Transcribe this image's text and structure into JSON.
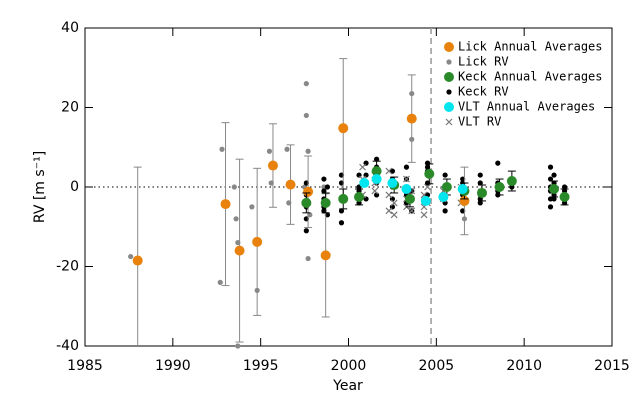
{
  "chart_data": {
    "type": "scatter",
    "xlabel": "Year",
    "ylabel": "RV [m s⁻¹]",
    "xlim": [
      1985,
      2015
    ],
    "ylim": [
      -40,
      40
    ],
    "xticks": [
      1985,
      1990,
      1995,
      2000,
      2005,
      2010,
      2015
    ],
    "yticks": [
      -40,
      -20,
      0,
      20,
      40
    ],
    "hline": 0,
    "vline": 2004.7,
    "legend": "upper right",
    "series": [
      {
        "name": "Lick Annual Averages",
        "color": "#e8820c",
        "marker": "circle-large",
        "x": [
          1988.0,
          1993.0,
          1993.8,
          1994.8,
          1995.7,
          1996.7,
          1997.7,
          1998.7,
          1999.7,
          2003.6,
          2006.6
        ],
        "values": [
          -18.5,
          -4.3,
          -16.0,
          -13.8,
          5.4,
          0.6,
          -1.2,
          -17.2,
          14.8,
          17.2,
          -3.5
        ],
        "errors": [
          23.5,
          20.5,
          23.0,
          18.5,
          10.5,
          10.0,
          9.0,
          15.5,
          17.5,
          11.0,
          8.5
        ]
      },
      {
        "name": "Lick RV",
        "color": "#888888",
        "marker": "circle-small",
        "x": [
          1987.6,
          1992.7,
          1992.8,
          1993.5,
          1993.6,
          1993.7,
          1993.7,
          1994.5,
          1994.8,
          1995.5,
          1995.6,
          1996.5,
          1996.6,
          1997.6,
          1997.6,
          1997.7,
          1997.7,
          1997.5,
          1997.8,
          1998.6,
          1999.6,
          2003.6,
          2003.6,
          2006.5,
          2006.6
        ],
        "values": [
          -17.5,
          -24,
          9.5,
          0,
          -8,
          -14,
          -40,
          -5,
          -26,
          9,
          1,
          9.5,
          -4,
          26,
          18,
          9,
          -18,
          0,
          -7,
          0,
          3,
          23.5,
          12,
          0,
          -8
        ]
      },
      {
        "name": "Keck Annual Averages",
        "color": "#2a8a2a",
        "marker": "circle-large",
        "x": [
          1997.6,
          1998.7,
          1999.7,
          2000.6,
          2001.6,
          2002.6,
          2003.5,
          2004.6,
          2005.6,
          2006.6,
          2007.6,
          2008.6,
          2009.3,
          2011.7,
          2012.3
        ],
        "values": [
          -4,
          -4,
          -3,
          -2.5,
          4,
          0.5,
          -3,
          3.3,
          0,
          -1,
          -1.5,
          0,
          1.5,
          -0.5,
          -2.5
        ],
        "errors": [
          2.5,
          2.5,
          2.5,
          2,
          2.5,
          2,
          2,
          2.5,
          2,
          2,
          2,
          2,
          2.5,
          2,
          2
        ]
      },
      {
        "name": "Keck RV",
        "color": "#000000",
        "marker": "circle-small",
        "x": [
          1997.6,
          1997.6,
          1997.6,
          1997.6,
          1997.6,
          1998.6,
          1998.6,
          1998.6,
          1998.6,
          1998.6,
          1998.8,
          1998.8,
          1999.6,
          1999.6,
          1999.6,
          1999.6,
          1999.6,
          2000.6,
          2000.6,
          2000.6,
          2000.6,
          2001.0,
          2001.0,
          2001.0,
          2001.6,
          2001.6,
          2001.6,
          2001.6,
          2001.6,
          2002.5,
          2002.5,
          2002.5,
          2002.5,
          2002.5,
          2003.3,
          2003.3,
          2003.3,
          2003.3,
          2003.6,
          2003.6,
          2003.6,
          2004.5,
          2004.5,
          2004.5,
          2004.5,
          2004.5,
          2005.5,
          2005.5,
          2005.5,
          2005.5,
          2006.5,
          2006.5,
          2006.5,
          2006.5,
          2007.5,
          2007.5,
          2007.5,
          2007.5,
          2007.5,
          2007.5,
          2008.5,
          2008.5,
          2008.5,
          2008.5,
          2009.3,
          2009.3,
          2011.5,
          2011.5,
          2011.5,
          2011.5,
          2011.5,
          2011.5,
          2011.7,
          2011.7,
          2011.7,
          2011.7,
          2012.3,
          2012.3,
          2012.3
        ],
        "values": [
          -8,
          -11,
          -5,
          -2,
          1,
          -3,
          -6,
          -5,
          -1,
          2,
          -7,
          0,
          -3,
          -6,
          -9,
          1,
          3,
          -4,
          0,
          3,
          -1,
          3,
          6,
          -3,
          5,
          1,
          7,
          2,
          -2,
          0,
          -3,
          4,
          -5,
          2,
          -2,
          2,
          5,
          -4,
          -3,
          -1,
          -6,
          6,
          1,
          4,
          -2,
          5,
          0,
          3,
          -4,
          -6,
          2,
          -2,
          -6,
          1,
          -1,
          -4,
          -3,
          1,
          3,
          -2,
          1,
          -2,
          6,
          -1,
          2,
          0,
          -3,
          0,
          2,
          -5,
          5,
          -1,
          3,
          -2,
          1,
          -3,
          -1,
          -4,
          0
        ]
      },
      {
        "name": "VLT Annual Averages",
        "color": "#00e5ee",
        "marker": "circle-large",
        "x": [
          2000.9,
          2001.6,
          2002.5,
          2003.3,
          2004.4,
          2005.4,
          2006.5
        ],
        "values": [
          1,
          2,
          1,
          -0.5,
          -3.5,
          -2.5,
          -0.5
        ]
      },
      {
        "name": "VLT RV",
        "color": "#777777",
        "marker": "x",
        "x": [
          2000.8,
          2000.8,
          2000.8,
          2001.5,
          2001.5,
          2001.5,
          2002.3,
          2002.3,
          2002.3,
          2002.6,
          2002.6,
          2003.3,
          2003.3,
          2003.3,
          2003.6,
          2003.6,
          2004.3,
          2004.3,
          2004.3,
          2004.5,
          2004.5,
          2005.4,
          2005.4,
          2006.4,
          2006.4
        ],
        "values": [
          -2,
          5,
          2,
          1,
          3,
          -1,
          -2,
          4,
          -6,
          -4,
          -7,
          2,
          -3,
          -5,
          -6,
          -1,
          -5,
          -2,
          -7,
          -4,
          0,
          -1,
          -3,
          -4,
          0
        ]
      }
    ]
  }
}
